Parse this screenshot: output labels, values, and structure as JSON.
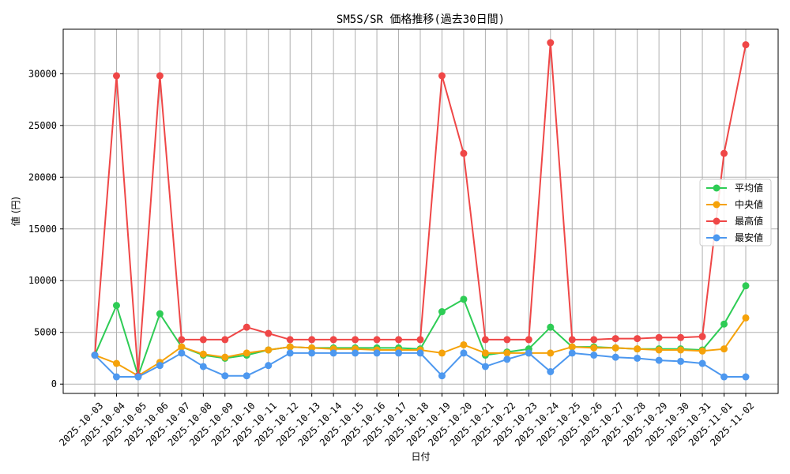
{
  "chart_data": {
    "type": "line",
    "title": "SM5S/SR 価格推移(過去30日間)",
    "xlabel": "日付",
    "ylabel": "値 (円)",
    "ylim": [
      -900,
      34300
    ],
    "yticks": [
      0,
      5000,
      10000,
      15000,
      20000,
      25000,
      30000
    ],
    "ytick_labels": [
      "0",
      "5000",
      "10000",
      "15000",
      "20000",
      "25000",
      "30000"
    ],
    "grid": true,
    "legend_position": "center-right",
    "categories": [
      "2025-10-03",
      "2025-10-04",
      "2025-10-05",
      "2025-10-06",
      "2025-10-07",
      "2025-10-08",
      "2025-10-09",
      "2025-10-10",
      "2025-10-11",
      "2025-10-12",
      "2025-10-13",
      "2025-10-14",
      "2025-10-15",
      "2025-10-16",
      "2025-10-17",
      "2025-10-18",
      "2025-10-19",
      "2025-10-20",
      "2025-10-21",
      "2025-10-22",
      "2025-10-23",
      "2025-10-24",
      "2025-10-25",
      "2025-10-26",
      "2025-10-27",
      "2025-10-28",
      "2025-10-29",
      "2025-10-30",
      "2025-10-31",
      "2025-11-01",
      "2025-11-02"
    ],
    "series": [
      {
        "name": "平均値",
        "color": "#2ecc55",
        "values": [
          2800,
          7600,
          800,
          6800,
          3600,
          2800,
          2500,
          2800,
          3300,
          3600,
          3500,
          3500,
          3500,
          3500,
          3500,
          3400,
          7000,
          8200,
          2800,
          3100,
          3400,
          5500,
          3600,
          3600,
          3500,
          3400,
          3400,
          3400,
          3300,
          5800,
          9500
        ]
      },
      {
        "name": "中央値",
        "color": "#f5a20a",
        "values": [
          2800,
          2000,
          800,
          2100,
          3600,
          2900,
          2600,
          3000,
          3300,
          3600,
          3500,
          3400,
          3400,
          3300,
          3300,
          3300,
          3000,
          3800,
          3000,
          3000,
          3000,
          3000,
          3600,
          3500,
          3500,
          3400,
          3300,
          3300,
          3200,
          3400,
          6400
        ]
      },
      {
        "name": "最高値",
        "color": "#ef4747",
        "values": [
          2800,
          29800,
          800,
          29800,
          4300,
          4300,
          4300,
          5500,
          4900,
          4300,
          4300,
          4300,
          4300,
          4300,
          4300,
          4300,
          29800,
          22300,
          4300,
          4300,
          4300,
          33000,
          4300,
          4300,
          4400,
          4400,
          4500,
          4500,
          4600,
          22300,
          32800
        ]
      },
      {
        "name": "最安値",
        "color": "#4d98ef",
        "values": [
          2800,
          700,
          700,
          1800,
          3000,
          1700,
          800,
          800,
          1800,
          3000,
          3000,
          3000,
          3000,
          3000,
          3000,
          3000,
          800,
          3000,
          1700,
          2400,
          3000,
          1200,
          3000,
          2800,
          2600,
          2500,
          2300,
          2200,
          2000,
          700,
          700
        ]
      }
    ]
  }
}
